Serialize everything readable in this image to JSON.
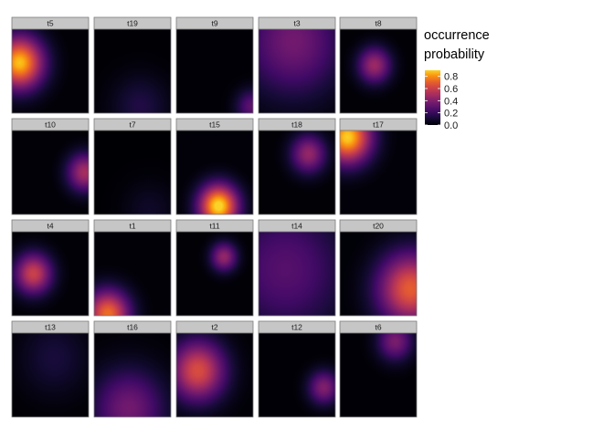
{
  "chart_data": {
    "type": "heatmap",
    "facet_labels": [
      "t5",
      "t19",
      "t9",
      "t3",
      "t8",
      "t10",
      "t7",
      "t15",
      "t18",
      "t17",
      "t4",
      "t1",
      "t11",
      "t14",
      "t20",
      "t13",
      "t16",
      "t2",
      "t12",
      "t6"
    ],
    "facet_rows": 4,
    "facet_cols": 5,
    "grid": false,
    "colorscale": "inferno",
    "fill_label_lines": [
      "occurrence",
      "probability"
    ],
    "legend": {
      "position": "right",
      "ticks": [
        0.0,
        0.2,
        0.4,
        0.6,
        0.8
      ],
      "tick_labels": [
        "0.0",
        "0.2",
        "0.4",
        "0.6",
        "0.8"
      ],
      "range": [
        0.0,
        0.9
      ]
    },
    "panels": [
      {
        "label": "t5",
        "cx": 0.1,
        "cy": 0.6,
        "sigma": 0.22,
        "peak": 0.88
      },
      {
        "label": "t19",
        "cx": 0.6,
        "cy": 0.08,
        "sigma": 0.25,
        "peak": 0.14
      },
      {
        "label": "t9",
        "cx": 0.98,
        "cy": 0.08,
        "sigma": 0.14,
        "peak": 0.3
      },
      {
        "label": "t3",
        "cx": 0.45,
        "cy": 0.85,
        "sigma": 0.45,
        "peak": 0.36
      },
      {
        "label": "t8",
        "cx": 0.45,
        "cy": 0.57,
        "sigma": 0.15,
        "peak": 0.47
      },
      {
        "label": "t10",
        "cx": 0.95,
        "cy": 0.5,
        "sigma": 0.16,
        "peak": 0.5
      },
      {
        "label": "t7",
        "cx": 0.72,
        "cy": 0.05,
        "sigma": 0.22,
        "peak": 0.08
      },
      {
        "label": "t15",
        "cx": 0.55,
        "cy": 0.1,
        "sigma": 0.18,
        "peak": 0.94
      },
      {
        "label": "t18",
        "cx": 0.65,
        "cy": 0.72,
        "sigma": 0.16,
        "peak": 0.45
      },
      {
        "label": "t17",
        "cx": 0.1,
        "cy": 0.92,
        "sigma": 0.22,
        "peak": 0.9
      },
      {
        "label": "t4",
        "cx": 0.28,
        "cy": 0.5,
        "sigma": 0.17,
        "peak": 0.6
      },
      {
        "label": "t1",
        "cx": 0.18,
        "cy": 0.02,
        "sigma": 0.2,
        "peak": 0.74
      },
      {
        "label": "t11",
        "cx": 0.62,
        "cy": 0.7,
        "sigma": 0.12,
        "peak": 0.45
      },
      {
        "label": "t14",
        "cx": 0.35,
        "cy": 0.55,
        "sigma": 0.55,
        "peak": 0.28
      },
      {
        "label": "t20",
        "cx": 0.92,
        "cy": 0.32,
        "sigma": 0.3,
        "peak": 0.7
      },
      {
        "label": "t13",
        "cx": 0.55,
        "cy": 0.7,
        "sigma": 0.3,
        "peak": 0.12
      },
      {
        "label": "t16",
        "cx": 0.45,
        "cy": 0.1,
        "sigma": 0.33,
        "peak": 0.36
      },
      {
        "label": "t2",
        "cx": 0.28,
        "cy": 0.55,
        "sigma": 0.25,
        "peak": 0.65
      },
      {
        "label": "t12",
        "cx": 0.85,
        "cy": 0.35,
        "sigma": 0.14,
        "peak": 0.4
      },
      {
        "label": "t6",
        "cx": 0.72,
        "cy": 0.9,
        "sigma": 0.16,
        "peak": 0.38
      }
    ]
  }
}
